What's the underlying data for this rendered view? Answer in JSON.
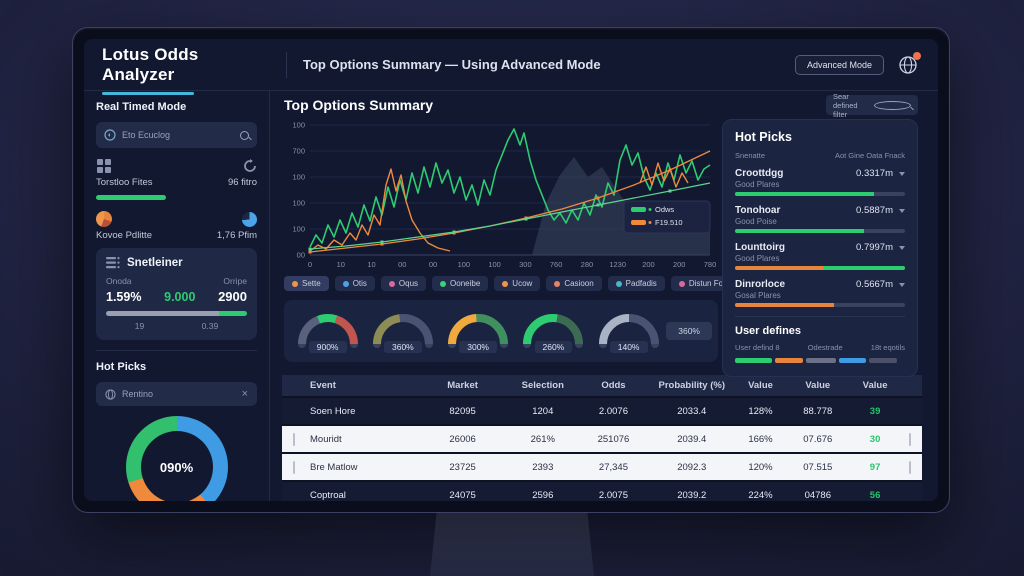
{
  "header": {
    "brand": "Lotus Odds Analyzer",
    "subtitle": "Top Options Summary — Using Advanced Mode",
    "advanced_mode_label": "Advanced Mode"
  },
  "sidebar": {
    "section_title": "Real Timed Mode",
    "search_text": "Eto Ecuclog",
    "stat_files": {
      "label": "Torstloo Fites",
      "value": "96 fitro"
    },
    "stat_points": {
      "label": "Kovoe Pdlitte",
      "value": "1,76 Pfim"
    },
    "summary_card": {
      "title": "Snetleiner",
      "left_label": "Onoda",
      "right_label": "Orripe",
      "left_value": "1.59%",
      "center_value": "9.000",
      "right_value": "2900",
      "sub_left": "19",
      "sub_right": "0.39",
      "bar": [
        {
          "color": "#9aa0b0",
          "pct": 80
        },
        {
          "color": "#2ecc71",
          "pct": 20
        }
      ]
    },
    "hot_picks_title": "Hot Picks",
    "pill_label": "Rentino",
    "close_glyph": "×",
    "donut": {
      "center_label": "090%",
      "segments": [
        {
          "color": "#3f9be4",
          "deg": 140
        },
        {
          "color": "#ef8a3c",
          "deg": 112
        },
        {
          "color": "#33c06e",
          "deg": 108
        }
      ]
    }
  },
  "main": {
    "title": "Top Options Summary",
    "filter_search": "Sear defined filter",
    "chart": {
      "type": "line",
      "y_ticks": [
        "100",
        "700",
        "100",
        "100",
        "100",
        "00"
      ],
      "x_ticks": [
        "0",
        "10",
        "10",
        "00",
        "00",
        "100",
        "100",
        "300",
        "760",
        "280",
        "1230",
        "200",
        "200",
        "780"
      ],
      "legend": [
        {
          "label": "Odws",
          "color": "#2ecc71"
        },
        {
          "label": "F19.510",
          "color": "#ef8a3c"
        }
      ],
      "area": {
        "color": "#39425c",
        "points": [
          [
            222,
            130
          ],
          [
            236,
            78
          ],
          [
            250,
            50
          ],
          [
            264,
            32
          ],
          [
            278,
            52
          ],
          [
            292,
            42
          ],
          [
            306,
            64
          ],
          [
            320,
            84
          ],
          [
            334,
            94
          ],
          [
            348,
            88
          ],
          [
            362,
            98
          ],
          [
            400,
            92
          ],
          [
            400,
            130
          ]
        ]
      },
      "series": [
        {
          "name": "odds-jagged",
          "color": "#2ecc71",
          "width": 1.6,
          "markers": false,
          "points": [
            [
              0,
              122
            ],
            [
              6,
              110
            ],
            [
              12,
              118
            ],
            [
              18,
              100
            ],
            [
              24,
              112
            ],
            [
              30,
              95
            ],
            [
              36,
              108
            ],
            [
              42,
              88
            ],
            [
              48,
              102
            ],
            [
              54,
              80
            ],
            [
              60,
              96
            ],
            [
              66,
              72
            ],
            [
              72,
              90
            ],
            [
              78,
              62
            ],
            [
              84,
              82
            ],
            [
              90,
              55
            ],
            [
              96,
              75
            ],
            [
              102,
              48
            ],
            [
              108,
              68
            ],
            [
              114,
              42
            ],
            [
              120,
              62
            ],
            [
              126,
              38
            ],
            [
              132,
              58
            ],
            [
              138,
              45
            ],
            [
              144,
              68
            ],
            [
              150,
              52
            ],
            [
              156,
              75
            ],
            [
              162,
              60
            ],
            [
              168,
              80
            ],
            [
              174,
              55
            ],
            [
              180,
              70
            ],
            [
              186,
              45
            ],
            [
              192,
              30
            ],
            [
              198,
              15
            ],
            [
              204,
              4
            ],
            [
              210,
              20
            ],
            [
              214,
              8
            ],
            [
              220,
              35
            ],
            [
              226,
              55
            ],
            [
              232,
              70
            ],
            [
              238,
              85
            ],
            [
              244,
              95
            ],
            [
              250,
              88
            ],
            [
              256,
              98
            ],
            [
              262,
              85
            ],
            [
              268,
              95
            ],
            [
              274,
              78
            ],
            [
              280,
              90
            ],
            [
              286,
              70
            ],
            [
              292,
              82
            ],
            [
              298,
              58
            ],
            [
              304,
              70
            ],
            [
              310,
              35
            ],
            [
              316,
              20
            ],
            [
              322,
              40
            ],
            [
              328,
              28
            ],
            [
              334,
              52
            ],
            [
              340,
              65
            ],
            [
              346,
              48
            ],
            [
              352,
              62
            ],
            [
              358,
              38
            ],
            [
              364,
              55
            ],
            [
              370,
              30
            ],
            [
              376,
              48
            ],
            [
              382,
              36
            ],
            [
              388,
              55
            ],
            [
              394,
              44
            ],
            [
              400,
              40
            ]
          ]
        },
        {
          "name": "field-jagged-left",
          "color": "#ef8a3c",
          "width": 1.4,
          "markers": false,
          "points": [
            [
              0,
              126
            ],
            [
              8,
              120
            ],
            [
              16,
              124
            ],
            [
              24,
              115
            ],
            [
              32,
              120
            ],
            [
              40,
              108
            ],
            [
              46,
              115
            ],
            [
              52,
              100
            ],
            [
              58,
              110
            ],
            [
              64,
              90
            ],
            [
              70,
              100
            ],
            [
              76,
              60
            ],
            [
              81,
              44
            ],
            [
              86,
              66
            ],
            [
              91,
              50
            ],
            [
              96,
              76
            ],
            [
              102,
              95
            ],
            [
              110,
              108
            ],
            [
              118,
              118
            ],
            [
              128,
              123
            ],
            [
              140,
              126
            ]
          ]
        },
        {
          "name": "field-jagged-right",
          "color": "#ef8a3c",
          "width": 1.4,
          "markers": false,
          "points": [
            [
              330,
              58
            ],
            [
              336,
              42
            ],
            [
              342,
              60
            ],
            [
              348,
              38
            ],
            [
              354,
              56
            ],
            [
              360,
              44
            ],
            [
              366,
              62
            ],
            [
              372,
              48
            ],
            [
              378,
              58
            ]
          ]
        },
        {
          "name": "field-trend",
          "color": "#ef8a3c",
          "width": 1.3,
          "markers": true,
          "points": [
            [
              0,
              127
            ],
            [
              36,
              123
            ],
            [
              72,
              119
            ],
            [
              108,
              114
            ],
            [
              144,
              108
            ],
            [
              180,
              101
            ],
            [
              216,
              93
            ],
            [
              252,
              84
            ],
            [
              288,
              73
            ],
            [
              324,
              60
            ],
            [
              360,
              45
            ],
            [
              400,
              26
            ]
          ]
        },
        {
          "name": "odds-trend",
          "color": "#5bd48f",
          "width": 1.2,
          "markers": true,
          "points": [
            [
              0,
              124
            ],
            [
              36,
              121
            ],
            [
              72,
              117
            ],
            [
              108,
              112
            ],
            [
              144,
              107
            ],
            [
              180,
              101
            ],
            [
              216,
              94
            ],
            [
              252,
              87
            ],
            [
              288,
              80
            ],
            [
              324,
              73
            ],
            [
              360,
              66
            ],
            [
              400,
              58
            ]
          ]
        }
      ]
    },
    "filters": [
      {
        "label": "Sette",
        "color": "#f0964b",
        "active": true
      },
      {
        "label": "Otis",
        "color": "#4da3e8",
        "active": false
      },
      {
        "label": "Oqus",
        "color": "#d66a9c",
        "active": false
      },
      {
        "label": "Ooneibe",
        "color": "#3ecf77",
        "active": false
      },
      {
        "label": "Ucow",
        "color": "#f0964b",
        "active": false
      },
      {
        "label": "Casioon",
        "color": "#e8836a",
        "active": false
      },
      {
        "label": "Padfadis",
        "color": "#4ab8c4",
        "active": false
      },
      {
        "label": "Distun Foods",
        "color": "#d66a9c",
        "active": false
      }
    ],
    "gauges": [
      {
        "label": "900%",
        "segments": [
          {
            "color": "#59617c",
            "from": 0,
            "to": 0.38
          },
          {
            "color": "#2ecc71",
            "from": 0.38,
            "to": 0.6
          },
          {
            "color": "#c0564e",
            "from": 0.6,
            "to": 1
          }
        ]
      },
      {
        "label": "360%",
        "segments": [
          {
            "color": "#8e8c55",
            "from": 0,
            "to": 0.46
          },
          {
            "color": "#4a5472",
            "from": 0.46,
            "to": 1
          }
        ]
      },
      {
        "label": "300%",
        "segments": [
          {
            "color": "#f0a93c",
            "from": 0,
            "to": 0.48
          },
          {
            "color": "#3f8f5f",
            "from": 0.48,
            "to": 1
          }
        ]
      },
      {
        "label": "260%",
        "segments": [
          {
            "color": "#2ecc71",
            "from": 0,
            "to": 0.55
          },
          {
            "color": "#3c6b53",
            "from": 0.55,
            "to": 1
          }
        ]
      },
      {
        "label": "140%",
        "segments": [
          {
            "color": "#aab3c5",
            "from": 0,
            "to": 0.5
          },
          {
            "color": "#4a5472",
            "from": 0.5,
            "to": 1
          }
        ]
      }
    ],
    "gauge_button_label": "360%",
    "table": {
      "headers": [
        "Event",
        "Market",
        "Selection",
        "Odds",
        "Probability (%)",
        "Value",
        "Value",
        "Value"
      ],
      "rows": [
        {
          "theme": "dark",
          "checked": true,
          "event": "Soen Hore",
          "market": "82095",
          "selection": "1204",
          "odds": "2.0076",
          "probability": "2033.4",
          "value1": "128%",
          "value2": "88.778",
          "value3": "39"
        },
        {
          "theme": "light",
          "checked": false,
          "event": "Mouridt",
          "market": "26006",
          "selection": "261%",
          "odds": "251076",
          "probability": "2039.4",
          "value1": "166%",
          "value2": "07.676",
          "value3": "30"
        },
        {
          "theme": "light",
          "checked": false,
          "event": "Bre Matlow",
          "market": "23725",
          "selection": "2393",
          "odds": "27,345",
          "probability": "2092.3",
          "value1": "120%",
          "value2": "07.515",
          "value3": "97"
        },
        {
          "theme": "dark",
          "checked": true,
          "event": "Coptroal",
          "market": "24075",
          "selection": "2596",
          "odds": "2.0075",
          "probability": "2039.2",
          "value1": "224%",
          "value2": "04786",
          "value3": "56"
        }
      ]
    }
  },
  "right": {
    "title": "Hot Picks",
    "sub_left": "Snenatte",
    "sub_right": "Aot Gine Oata Fnack",
    "items": [
      {
        "name": "Croottdgg",
        "sub": "Good Plares",
        "value": "0.3317m",
        "bar": [
          {
            "color": "#2ecc71",
            "pct": 82
          }
        ]
      },
      {
        "name": "Tonohoar",
        "sub": "Good Poise",
        "value": "0.5887m",
        "bar": [
          {
            "color": "#2ecc71",
            "pct": 76
          }
        ]
      },
      {
        "name": "Lounttoirg",
        "sub": "Good Plares",
        "value": "0.7997m",
        "bar": [
          {
            "color": "#e8853d",
            "pct": 52
          },
          {
            "color": "#2ecc71",
            "pct": 48
          }
        ]
      },
      {
        "name": "Dinrorloce",
        "sub": "Gosal Plares",
        "value": "0.5667m",
        "bar": [
          {
            "color": "#e8853d",
            "pct": 58
          }
        ]
      }
    ],
    "user_defines": {
      "title": "User defines",
      "labels": [
        "User defind 8",
        "Odestrade",
        "18t eqotils"
      ],
      "segments": [
        {
          "color": "#2ecc71",
          "pct": 22
        },
        {
          "color": "#e8853d",
          "pct": 16
        },
        {
          "color": "#6b7287",
          "pct": 18
        },
        {
          "color": "#3f9be4",
          "pct": 16
        },
        {
          "color": "#4a5168",
          "pct": 16
        }
      ]
    }
  }
}
